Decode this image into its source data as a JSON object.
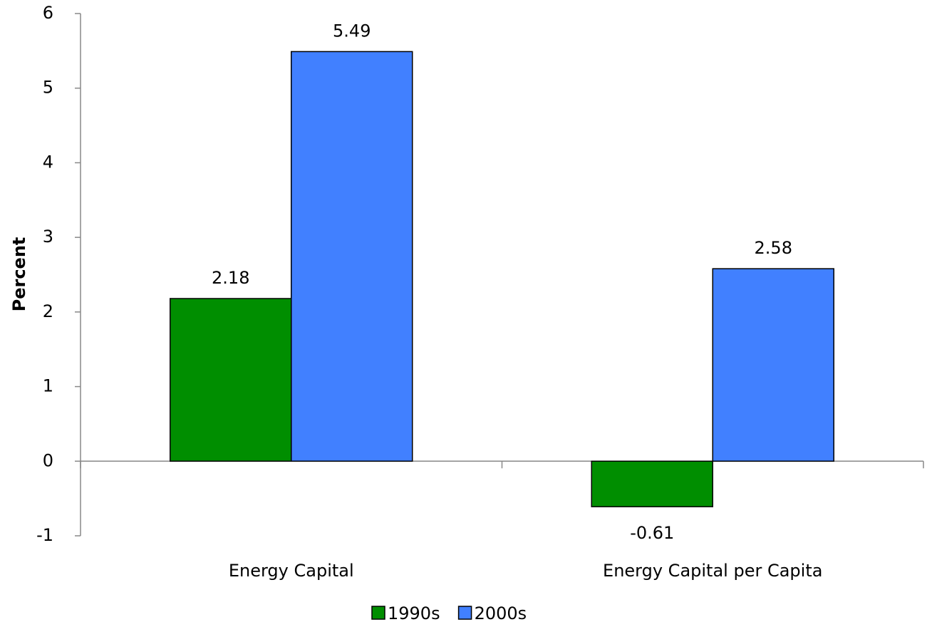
{
  "chart_data": {
    "type": "bar",
    "y_label": "Percent",
    "categories": [
      "Energy Capital",
      "Energy Capital per Capita"
    ],
    "series": [
      {
        "name": "1990s",
        "color": "#008e00",
        "values": [
          2.18,
          -0.61
        ]
      },
      {
        "name": "2000s",
        "color": "#4180ff",
        "values": [
          5.49,
          2.58
        ]
      }
    ],
    "ylim": [
      -1,
      6
    ],
    "yticks": [
      -1,
      0,
      1,
      2,
      3,
      4,
      5,
      6
    ],
    "grid": false,
    "legend": "bottom"
  }
}
